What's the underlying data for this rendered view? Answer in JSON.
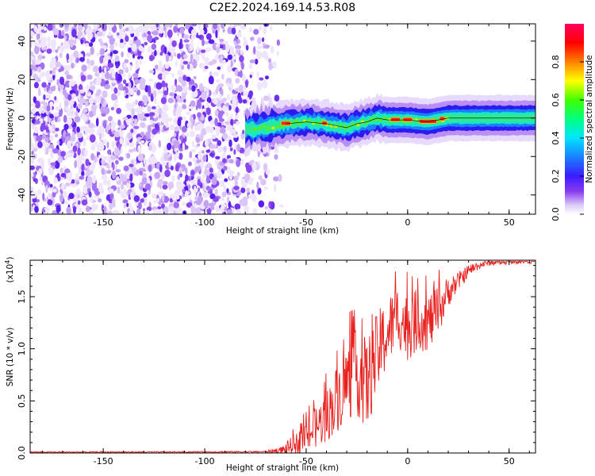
{
  "figure": {
    "title": "C2E2.2024.169.14.53.R08"
  },
  "colors": {
    "snr_line": "#e8211e",
    "spectrogram_noise": "#7b2cf0",
    "spectrogram_band": "#18e6a8",
    "spectrogram_peak": "#f01010"
  },
  "chart_data": [
    {
      "type": "heatmap",
      "name": "spectrogram",
      "xlabel": "Height of straight line (km)",
      "ylabel": "Frequency (Hz)",
      "xlim": [
        -186,
        63
      ],
      "ylim": [
        -50,
        49
      ],
      "xticks": [
        -150,
        -100,
        -50,
        0,
        50
      ],
      "xtick_labels": [
        "-150",
        "-100",
        "-50",
        "0",
        "50"
      ],
      "yticks": [
        -40,
        -20,
        0,
        20,
        40
      ],
      "ytick_labels": [
        "-40",
        "-20",
        "0",
        "20",
        "40"
      ],
      "noise_region_x": [
        -186,
        -70
      ],
      "signal_band_center_hz": [
        [
          -80,
          -6
        ],
        [
          -70,
          -5
        ],
        [
          -60,
          -3
        ],
        [
          -50,
          -2
        ],
        [
          -40,
          -3
        ],
        [
          -30,
          -5
        ],
        [
          -25,
          -3
        ],
        [
          -20,
          -2
        ],
        [
          -15,
          0
        ],
        [
          -10,
          -1
        ],
        [
          0,
          -1
        ],
        [
          10,
          -2
        ],
        [
          20,
          0
        ],
        [
          40,
          0
        ],
        [
          63,
          0
        ]
      ],
      "peak_amplitude_regions_x": [
        [
          -62,
          -58
        ],
        [
          -42,
          -40
        ],
        [
          -8,
          -4
        ],
        [
          -2,
          2
        ],
        [
          6,
          14
        ],
        [
          16,
          18
        ]
      ],
      "colorbar": {
        "label": "Normalized spectral amplitude",
        "range": [
          0,
          1
        ],
        "ticks": [
          0.0,
          0.2,
          0.4,
          0.6,
          0.8
        ],
        "tick_labels": [
          "0.0",
          "0.2",
          "0.4",
          "0.6",
          "0.8"
        ],
        "colormap": [
          "#ffffff",
          "#8a3cf0",
          "#3a1cff",
          "#1a80ff",
          "#00e5ff",
          "#00ff80",
          "#40ff00",
          "#ffff00",
          "#ff8000",
          "#ff0000",
          "#ff0060"
        ]
      },
      "grid": false
    },
    {
      "type": "line",
      "name": "snr",
      "xlabel": "Height of straight line (km)",
      "ylabel": "SNR (10 * v/v)",
      "ylabel_scale": "(x10",
      "ylabel_scale_exp": "4",
      "ylabel_scale_close": ")",
      "xlim": [
        -186,
        63
      ],
      "ylim": [
        0,
        18500
      ],
      "xticks": [
        -150,
        -100,
        -50,
        0,
        50
      ],
      "xtick_labels": [
        "-150",
        "-100",
        "-50",
        "0",
        "50"
      ],
      "yticks": [
        0,
        5000,
        10000,
        15000
      ],
      "ytick_labels": [
        "0.0",
        "0.5",
        "1.0",
        "1.5"
      ],
      "series_envelope": {
        "x": [
          -186,
          -120,
          -70,
          -62,
          -58,
          -55,
          -50,
          -45,
          -40,
          -35,
          -30,
          -25,
          -20,
          -15,
          -10,
          -5,
          0,
          5,
          10,
          15,
          20,
          25,
          30,
          35,
          40,
          50,
          63
        ],
        "mean": [
          80,
          90,
          120,
          250,
          600,
          900,
          1600,
          2500,
          3500,
          5200,
          6800,
          7800,
          6500,
          9500,
          11500,
          13200,
          12000,
          12800,
          12500,
          13500,
          15500,
          16500,
          17500,
          18000,
          18300,
          18400,
          18500
        ],
        "spread": [
          60,
          60,
          80,
          400,
          800,
          1000,
          1500,
          2000,
          2500,
          3200,
          3800,
          4200,
          4500,
          4000,
          3500,
          3000,
          3200,
          3000,
          2800,
          2500,
          1500,
          900,
          600,
          400,
          350,
          300,
          300
        ]
      },
      "grid": false
    }
  ]
}
